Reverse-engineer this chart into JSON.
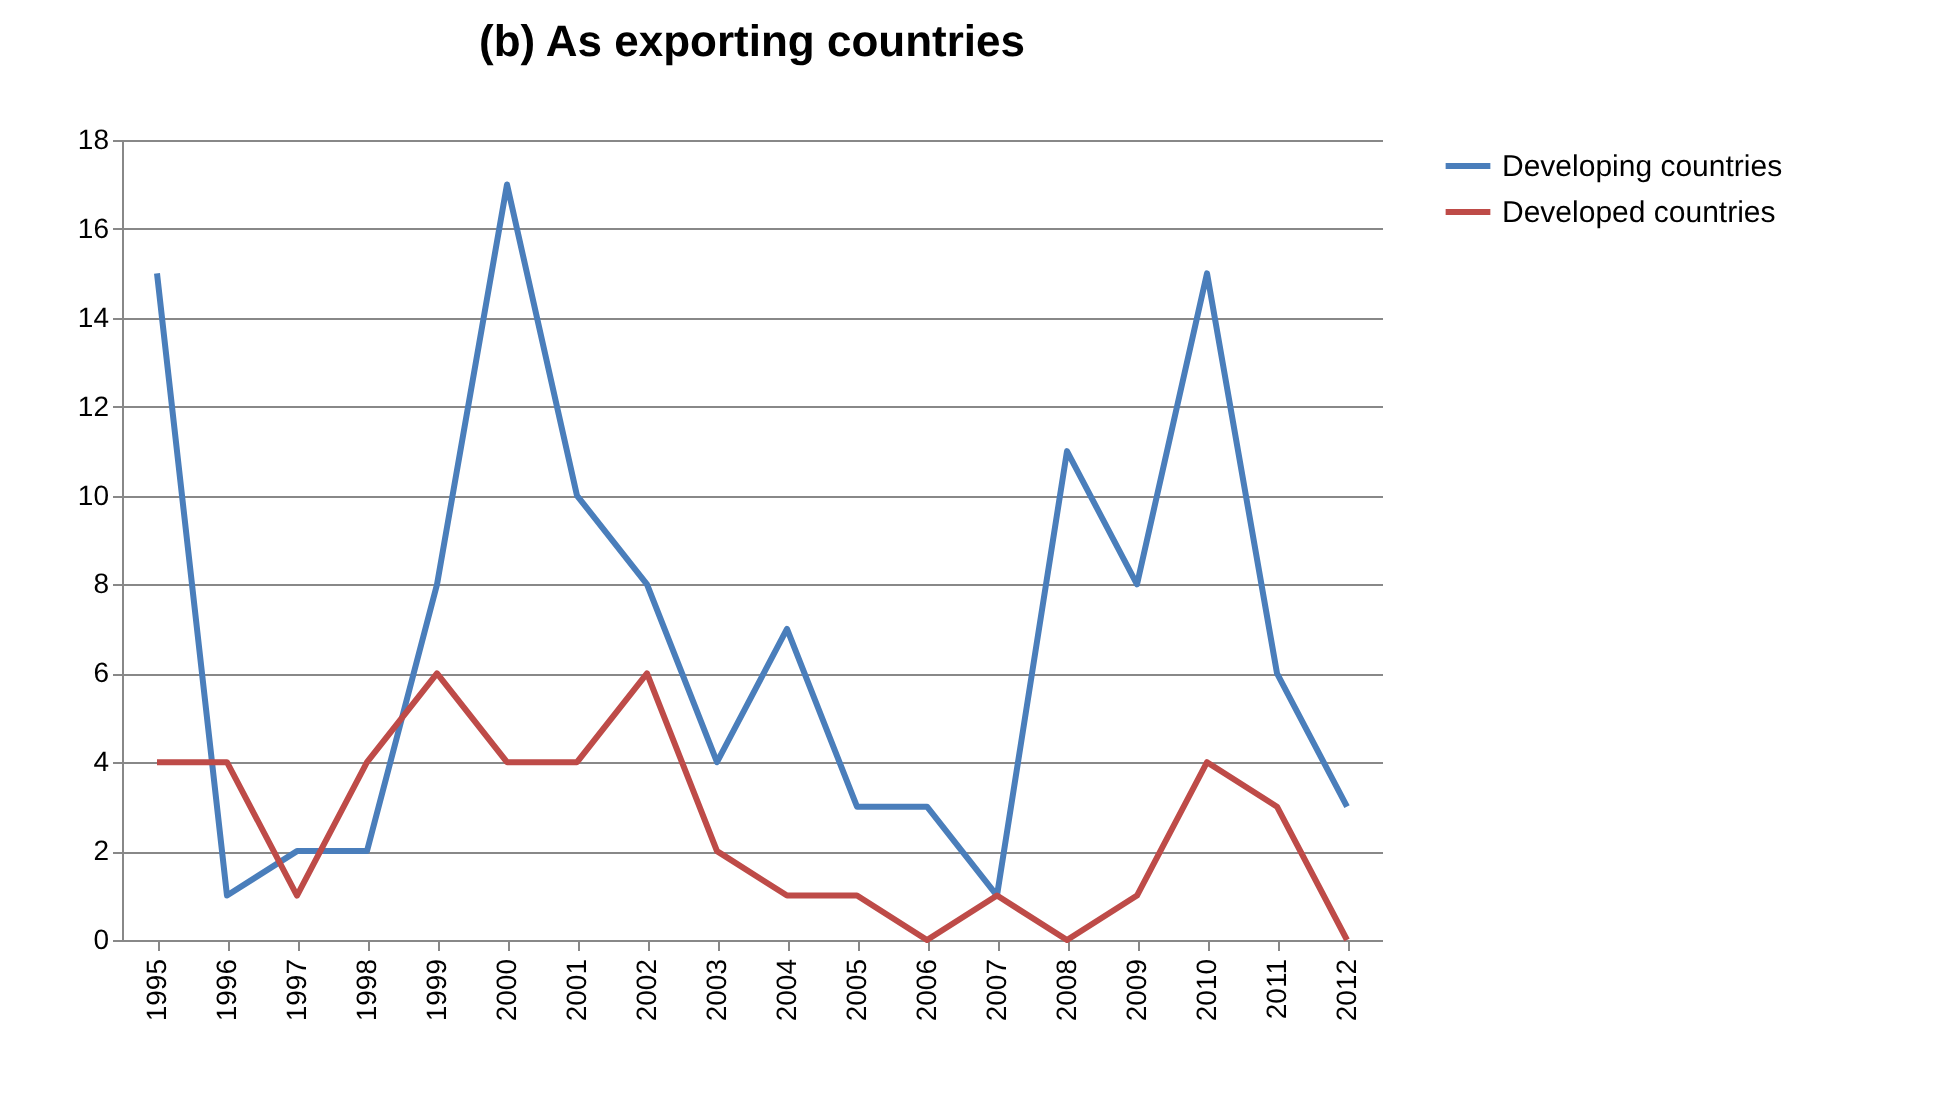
{
  "chart_data": {
    "type": "line",
    "title": "(b)  As exporting countries",
    "categories": [
      "1995",
      "1996",
      "1997",
      "1998",
      "1999",
      "2000",
      "2001",
      "2002",
      "2003",
      "2004",
      "2005",
      "2006",
      "2007",
      "2008",
      "2009",
      "2010",
      "2011",
      "2012"
    ],
    "series": [
      {
        "name": "Developing countries",
        "color": "#4a7ebb",
        "values": [
          15,
          1,
          2,
          2,
          8,
          17,
          10,
          8,
          4,
          7,
          3,
          3,
          1,
          11,
          8,
          15,
          6,
          3
        ]
      },
      {
        "name": "Developed countries",
        "color": "#be4b48",
        "values": [
          4,
          4,
          1,
          4,
          6,
          4,
          4,
          6,
          2,
          1,
          1,
          0,
          1,
          0,
          1,
          4,
          3,
          0
        ]
      }
    ],
    "ylim": [
      0,
      18
    ],
    "yticks": [
      0,
      2,
      4,
      6,
      8,
      10,
      12,
      14,
      16,
      18
    ],
    "grid": "y",
    "legend": "right",
    "marker": "none",
    "line_style": "solid"
  }
}
